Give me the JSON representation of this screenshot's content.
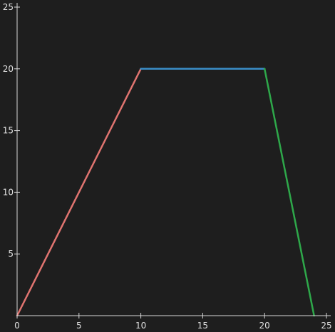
{
  "colors": {
    "background": "#1e1e1e",
    "axis": "#d8d8d8",
    "tick_label": "#e0e0e0"
  },
  "chart_data": {
    "type": "line",
    "xlim": [
      0,
      25
    ],
    "ylim": [
      0,
      25
    ],
    "x_ticks": [
      0,
      5,
      10,
      15,
      20,
      25
    ],
    "y_ticks": [
      5,
      10,
      15,
      20,
      25
    ],
    "x_tick_labels": [
      "0",
      "5",
      "10",
      "15",
      "20",
      "25"
    ],
    "y_tick_labels": [
      "5",
      "10",
      "15",
      "20",
      "25"
    ],
    "grid": false,
    "legend": "none",
    "title": "",
    "xlabel": "",
    "ylabel": "",
    "series": [
      {
        "color": "#e07470",
        "points": [
          [
            0,
            0
          ],
          [
            10,
            20
          ]
        ]
      },
      {
        "color": "#3a8ec8",
        "points": [
          [
            10,
            20
          ],
          [
            20,
            20
          ]
        ]
      },
      {
        "color": "#2ea84a",
        "points": [
          [
            20,
            20
          ],
          [
            24,
            0
          ]
        ]
      }
    ]
  }
}
